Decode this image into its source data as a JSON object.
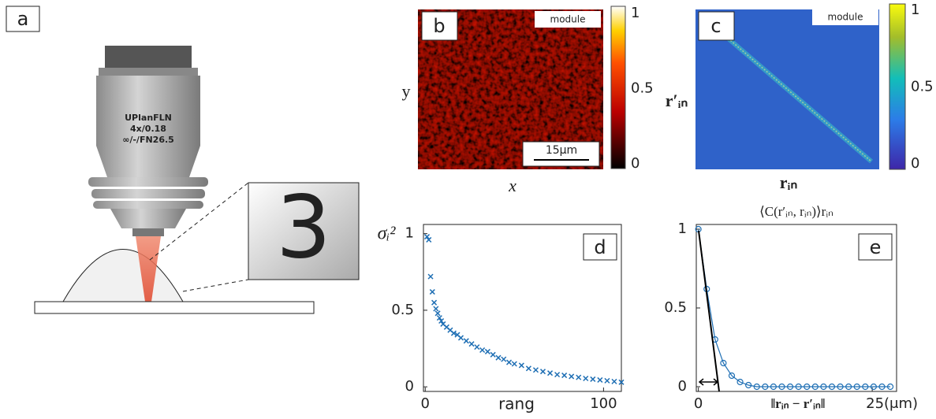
{
  "panel_a": {
    "label": "a",
    "objective_lines": [
      "UPlanFLN",
      "4x/0.18",
      "∞/-/FN26.5"
    ],
    "zoom_text": "3"
  },
  "panel_b": {
    "label": "b",
    "tag": "module",
    "scale_bar": "15μm",
    "ylabel": "y",
    "xlabel": "x",
    "colorbar_ticks": [
      0,
      0.5,
      1
    ]
  },
  "panel_c": {
    "label": "c",
    "tag": "module",
    "ylabel": "r′ᵢₙ",
    "xlabel": "rᵢₙ",
    "colorbar_ticks": [
      0,
      0.5,
      1
    ]
  },
  "chart_data": [
    {
      "type": "scatter",
      "label": "d",
      "ylabel": "σᵢ²",
      "xlabel": "rang",
      "color": "#1f6fb4",
      "x": [
        1,
        2,
        3,
        4,
        5,
        6,
        7,
        8,
        9,
        10,
        12,
        14,
        16,
        18,
        20,
        23,
        26,
        29,
        32,
        35,
        38,
        41,
        44,
        47,
        50,
        54,
        58,
        62,
        66,
        70,
        74,
        78,
        82,
        86,
        90,
        94,
        98,
        102,
        106,
        110
      ],
      "values": [
        0.98,
        0.96,
        0.72,
        0.62,
        0.55,
        0.51,
        0.48,
        0.45,
        0.43,
        0.41,
        0.39,
        0.37,
        0.35,
        0.34,
        0.32,
        0.3,
        0.28,
        0.26,
        0.24,
        0.23,
        0.21,
        0.19,
        0.18,
        0.16,
        0.15,
        0.14,
        0.12,
        0.11,
        0.1,
        0.09,
        0.08,
        0.075,
        0.068,
        0.062,
        0.055,
        0.05,
        0.045,
        0.04,
        0.035,
        0.03
      ],
      "xlim": [
        -1,
        110
      ],
      "ylim": [
        -0.03,
        1.06
      ],
      "xticks": [
        0,
        100
      ],
      "yticks": [
        0,
        0.5,
        1
      ]
    },
    {
      "type": "line",
      "label": "e",
      "title": "⟨C(r′ᵢₙ, rᵢₙ)⟩rᵢₙ",
      "xlabel": "‖rᵢₙ − r′ᵢₙ‖",
      "color": "#1f6fb4",
      "x": [
        0,
        1.2,
        2.4,
        3.6,
        4.8,
        6,
        7.2,
        8.4,
        9.6,
        10.8,
        12,
        13.2,
        14.4,
        15.6,
        16.8,
        18,
        19.2,
        20.4,
        21.6,
        22.8,
        24,
        25.2,
        26.4,
        27.6
      ],
      "values": [
        1,
        0.62,
        0.3,
        0.15,
        0.07,
        0.03,
        0.01,
        0,
        0,
        0,
        0,
        0,
        0,
        0,
        0,
        0,
        0,
        0,
        0,
        0,
        0,
        0,
        0,
        0
      ],
      "xlim": [
        -0.3,
        28.5
      ],
      "ylim": [
        -0.03,
        1.03
      ],
      "xticks": [
        0,
        {
          "value": 25,
          "label": "25(μm)"
        }
      ],
      "yticks": [
        0,
        0.5,
        1
      ]
    }
  ]
}
